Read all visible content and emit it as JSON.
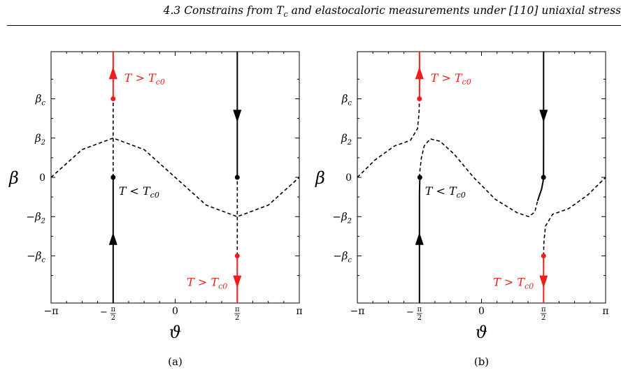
{
  "header": {
    "section": "4.3",
    "title_prefix": "Constrains from",
    "tc_symbol": "T",
    "tc_sub": "c",
    "title_suffix": "and elastocaloric measurements under [110] uniaxial stress"
  },
  "chart_data": [
    {
      "type": "line",
      "panel_label": "(a)",
      "xlabel": "ϑ",
      "ylabel": "β",
      "x_ticks": [
        "−π",
        "−π/2",
        "0",
        "π/2",
        "π"
      ],
      "y_ticks": [
        "βc",
        "β2",
        "0",
        "−β2",
        "−βc"
      ],
      "xlim": [
        -3.1416,
        3.1416
      ],
      "ylim": [
        -1.6,
        1.6
      ],
      "beta_2": 0.5,
      "beta_c": 1.0,
      "annotations": [
        {
          "text": "T > Tc0",
          "color": "#ee1c1c",
          "x": -1.5708,
          "y": 1.3
        },
        {
          "text": "T < Tc0",
          "color": "#000000",
          "x": -1.5708,
          "y": -0.1
        },
        {
          "text": "T > Tc0",
          "color": "#ee1c1c",
          "x": 1.5708,
          "y": -1.3
        }
      ],
      "series": [
        {
          "style": "dashed",
          "color": "#000000",
          "x": [
            -3.1416,
            -2.3562,
            -1.5708,
            -0.7854,
            0,
            0.7854,
            1.5708,
            2.3562,
            3.1416
          ],
          "y": [
            0,
            0.354,
            0.5,
            0.354,
            0,
            -0.354,
            -0.5,
            -0.354,
            0
          ]
        },
        {
          "style": "solid",
          "color": "#000000",
          "x": [
            -1.5708,
            -1.5708
          ],
          "y": [
            -1.6,
            0
          ]
        },
        {
          "style": "dashed",
          "color": "#000000",
          "x": [
            -1.5708,
            -1.5708
          ],
          "y": [
            0,
            1.0
          ]
        },
        {
          "style": "solid",
          "color": "#ee1c1c",
          "x": [
            -1.5708,
            -1.5708
          ],
          "y": [
            1.0,
            1.6
          ]
        },
        {
          "style": "solid",
          "color": "#000000",
          "x": [
            1.5708,
            1.5708
          ],
          "y": [
            0,
            1.6
          ]
        },
        {
          "style": "dashed",
          "color": "#000000",
          "x": [
            1.5708,
            1.5708
          ],
          "y": [
            -1.0,
            0
          ]
        },
        {
          "style": "solid",
          "color": "#ee1c1c",
          "x": [
            1.5708,
            1.5708
          ],
          "y": [
            -1.6,
            -1.0
          ]
        }
      ],
      "points": [
        {
          "x": -1.5708,
          "y": 0,
          "color": "#000000"
        },
        {
          "x": 1.5708,
          "y": 0,
          "color": "#000000"
        },
        {
          "x": -1.5708,
          "y": 1.0,
          "color": "#ee1c1c"
        },
        {
          "x": 1.5708,
          "y": -1.0,
          "color": "#ee1c1c"
        }
      ],
      "arrows": [
        {
          "x": -1.5708,
          "y": 1.33,
          "dir": "up",
          "color": "#ee1c1c"
        },
        {
          "x": -1.5708,
          "y": -0.78,
          "dir": "up",
          "color": "#000000"
        },
        {
          "x": 1.5708,
          "y": 0.78,
          "dir": "down",
          "color": "#000000"
        },
        {
          "x": 1.5708,
          "y": -1.33,
          "dir": "down",
          "color": "#ee1c1c"
        }
      ]
    },
    {
      "type": "line",
      "panel_label": "(b)",
      "xlabel": "ϑ",
      "ylabel": "β",
      "x_ticks": [
        "−π",
        "−π/2",
        "0",
        "π/2",
        "π"
      ],
      "y_ticks": [
        "βc",
        "β2",
        "0",
        "−β2",
        "−βc"
      ],
      "xlim": [
        -3.1416,
        3.1416
      ],
      "ylim": [
        -1.6,
        1.6
      ],
      "beta_2": 0.5,
      "beta_c": 1.0,
      "annotations": [
        {
          "text": "T > Tc0",
          "color": "#ee1c1c",
          "x": -1.5708,
          "y": 1.3
        },
        {
          "text": "T < Tc0",
          "color": "#000000",
          "x": -1.5708,
          "y": -0.1
        },
        {
          "text": "T > Tc0",
          "color": "#ee1c1c",
          "x": 1.5708,
          "y": -1.3
        }
      ],
      "series": [
        {
          "style": "dashed",
          "color": "#000000",
          "x": [
            -3.1416,
            -2.7,
            -2.2,
            -1.8,
            -1.62,
            -1.58,
            -1.57
          ],
          "y": [
            0,
            0.22,
            0.4,
            0.47,
            0.62,
            0.82,
            1.0
          ]
        },
        {
          "style": "dashed",
          "color": "#000000",
          "x": [
            -1.57,
            -1.56,
            -1.52,
            -1.45,
            -1.3,
            -1.05,
            -0.7,
            -0.2,
            0.35,
            0.9,
            1.2,
            1.35,
            1.42
          ],
          "y": [
            0,
            0.08,
            0.25,
            0.4,
            0.49,
            0.46,
            0.3,
            0.0,
            -0.28,
            -0.45,
            -0.5,
            -0.44,
            -0.3
          ]
        },
        {
          "style": "dashed",
          "color": "#000000",
          "x": [
            1.57,
            1.58,
            1.62,
            1.8,
            2.2,
            2.7,
            3.1416
          ],
          "y": [
            -1.0,
            -0.82,
            -0.62,
            -0.47,
            -0.4,
            -0.22,
            0
          ]
        },
        {
          "style": "solid",
          "color": "#000000",
          "x": [
            -1.5708,
            -1.5708,
            -1.57,
            -1.56
          ],
          "y": [
            -1.6,
            -0.5,
            -0.2,
            0
          ]
        },
        {
          "style": "solid",
          "color": "#ee1c1c",
          "x": [
            -1.5708,
            -1.5708
          ],
          "y": [
            1.0,
            1.6
          ]
        },
        {
          "style": "solid",
          "color": "#000000",
          "x": [
            1.42,
            1.52,
            1.56,
            1.57,
            1.5708,
            1.5708
          ],
          "y": [
            -0.3,
            -0.15,
            -0.05,
            0,
            0.5,
            1.6
          ]
        },
        {
          "style": "solid",
          "color": "#ee1c1c",
          "x": [
            1.5708,
            1.5708
          ],
          "y": [
            -1.6,
            -1.0
          ]
        }
      ],
      "points": [
        {
          "x": -1.56,
          "y": 0,
          "color": "#000000"
        },
        {
          "x": 1.57,
          "y": 0,
          "color": "#000000"
        },
        {
          "x": -1.5708,
          "y": 1.0,
          "color": "#ee1c1c"
        },
        {
          "x": 1.5708,
          "y": -1.0,
          "color": "#ee1c1c"
        }
      ],
      "arrows": [
        {
          "x": -1.5708,
          "y": 1.33,
          "dir": "up",
          "color": "#ee1c1c"
        },
        {
          "x": -1.5708,
          "y": -0.78,
          "dir": "up",
          "color": "#000000"
        },
        {
          "x": 1.5708,
          "y": 0.78,
          "dir": "down",
          "color": "#000000"
        },
        {
          "x": 1.5708,
          "y": -1.33,
          "dir": "down",
          "color": "#ee1c1c"
        }
      ]
    }
  ]
}
